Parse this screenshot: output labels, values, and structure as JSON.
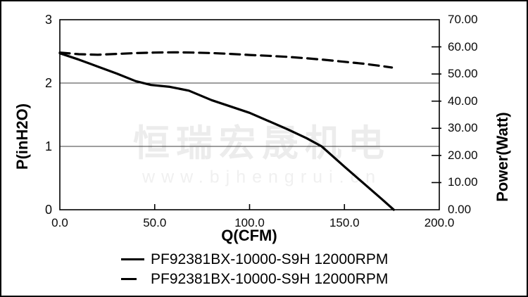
{
  "watermark": {
    "text": "恒瑞宏晟机电",
    "url": "www.bjhengrui.cn"
  },
  "colors": {
    "line": "#000000",
    "grid": "#3c3c3c",
    "frame": "#000000",
    "background": "#ffffff",
    "watermark": "#ececec"
  },
  "chart_data": {
    "type": "line",
    "title": "",
    "x_axis": {
      "label": "Q(CFM)",
      "min": 0,
      "max": 200,
      "tick_values": [
        0,
        50,
        100,
        150,
        200
      ],
      "tick_labels": [
        "0.0",
        "50.0",
        "100.0",
        "150.0",
        "200.0"
      ],
      "inner_tick_values": [
        50,
        100,
        150
      ]
    },
    "y_left": {
      "label": "P(inH2O)",
      "min": 0,
      "max": 3,
      "tick_values": [
        0,
        1,
        2,
        3
      ],
      "tick_labels": [
        "0",
        "1",
        "2",
        "3"
      ],
      "gridlines": [
        1,
        2
      ]
    },
    "y_right": {
      "label": "Power(Watt)",
      "min": 0,
      "max": 70,
      "tick_values": [
        0,
        10,
        20,
        30,
        40,
        50,
        60,
        70
      ],
      "tick_labels": [
        "0.00",
        "10.00",
        "20.00",
        "30.00",
        "40.00",
        "50.00",
        "60.00",
        "70.00"
      ],
      "inner_tick_values": [
        10,
        20,
        30,
        40,
        50,
        60
      ]
    },
    "series": [
      {
        "name": "PF92381BX-10000-S9H 12000RPM",
        "style": "solid",
        "axis": "left",
        "points": [
          [
            0,
            2.47
          ],
          [
            10,
            2.37
          ],
          [
            20,
            2.26
          ],
          [
            30,
            2.15
          ],
          [
            40,
            2.03
          ],
          [
            48,
            1.97
          ],
          [
            58,
            1.94
          ],
          [
            68,
            1.88
          ],
          [
            80,
            1.73
          ],
          [
            90,
            1.63
          ],
          [
            100,
            1.53
          ],
          [
            110,
            1.4
          ],
          [
            120,
            1.27
          ],
          [
            130,
            1.13
          ],
          [
            138,
            1.0
          ],
          [
            150,
            0.68
          ],
          [
            160,
            0.42
          ],
          [
            170,
            0.16
          ],
          [
            176,
            0.0
          ]
        ]
      },
      {
        "name": "PF92381BX-10000-S9H 12000RPM",
        "style": "dashed",
        "axis": "right",
        "points": [
          [
            0,
            57.9
          ],
          [
            10,
            57.3
          ],
          [
            20,
            57.1
          ],
          [
            30,
            57.4
          ],
          [
            40,
            57.7
          ],
          [
            50,
            57.9
          ],
          [
            60,
            58.0
          ],
          [
            70,
            57.9
          ],
          [
            80,
            57.7
          ],
          [
            90,
            57.4
          ],
          [
            100,
            57.0
          ],
          [
            110,
            56.7
          ],
          [
            120,
            56.3
          ],
          [
            130,
            55.8
          ],
          [
            140,
            55.2
          ],
          [
            150,
            54.5
          ],
          [
            160,
            53.8
          ],
          [
            170,
            52.9
          ],
          [
            175,
            52.4
          ]
        ]
      }
    ],
    "legend": {
      "position": "bottom"
    }
  }
}
